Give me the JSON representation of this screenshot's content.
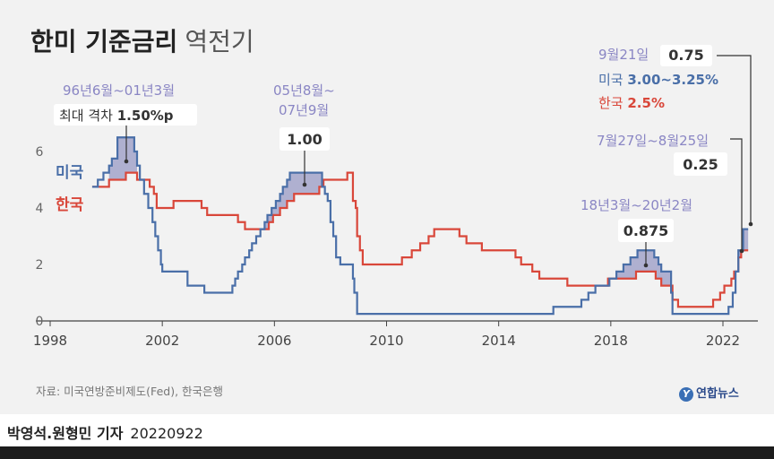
{
  "title": {
    "bold": "한미 기준금리",
    "light": "역전기"
  },
  "source": "자료: 미국연방준비제도(Fed), 한국은행",
  "logo": {
    "mark": "Y",
    "text": "연합뉴스"
  },
  "byline": {
    "name": "박영석.원형민 기자",
    "date": "20220922"
  },
  "colors": {
    "us": "#4a6fa8",
    "kr": "#d9473a",
    "gap_fill": "#a7a8cc",
    "annotation": "#8a86c4",
    "grid": "#cfcfcf",
    "axis": "#444444"
  },
  "annotations": [
    {
      "id": "ann1",
      "line1": "96년6월~01년3월",
      "line2_prefix": "최대 격차 ",
      "line2_value": "1.50%p"
    },
    {
      "id": "ann2",
      "line1": "05년8월~",
      "line2": "07년9월",
      "badge": "1.00"
    },
    {
      "id": "ann3",
      "line1": "18년3월~20년2월",
      "badge": "0.875"
    },
    {
      "id": "ann4",
      "line1": "7월27일~8월25일",
      "badge": "0.25"
    },
    {
      "id": "ann5",
      "line1": "9월21일",
      "badge": "0.75",
      "us_label": "미국 ",
      "us_value": "3.00~3.25%",
      "kr_label": "한국 ",
      "kr_value": "2.5%"
    }
  ],
  "chart_data": {
    "type": "line",
    "title": "한미 기준금리 역전기",
    "xlabel": "",
    "ylabel": "",
    "xlim": [
      1998,
      2023.2
    ],
    "ylim": [
      0,
      7
    ],
    "x_ticks": [
      1998,
      2002,
      2006,
      2010,
      2014,
      2018,
      2022
    ],
    "y_ticks": [
      0,
      2,
      4,
      6
    ],
    "grid": false,
    "legend": "inline-left",
    "series": [
      {
        "name": "미국",
        "key": "us",
        "step": true,
        "points": [
          [
            1999.5,
            4.75
          ],
          [
            1999.7,
            5.0
          ],
          [
            1999.9,
            5.25
          ],
          [
            2000.1,
            5.5
          ],
          [
            2000.2,
            5.75
          ],
          [
            2000.4,
            6.5
          ],
          [
            2001.0,
            6.0
          ],
          [
            2001.1,
            5.5
          ],
          [
            2001.2,
            5.0
          ],
          [
            2001.35,
            4.5
          ],
          [
            2001.5,
            4.0
          ],
          [
            2001.65,
            3.5
          ],
          [
            2001.75,
            3.0
          ],
          [
            2001.85,
            2.5
          ],
          [
            2001.95,
            2.0
          ],
          [
            2002.0,
            1.75
          ],
          [
            2002.9,
            1.25
          ],
          [
            2003.5,
            1.0
          ],
          [
            2004.5,
            1.25
          ],
          [
            2004.6,
            1.5
          ],
          [
            2004.7,
            1.75
          ],
          [
            2004.85,
            2.0
          ],
          [
            2004.95,
            2.25
          ],
          [
            2005.1,
            2.5
          ],
          [
            2005.2,
            2.75
          ],
          [
            2005.35,
            3.0
          ],
          [
            2005.5,
            3.25
          ],
          [
            2005.65,
            3.5
          ],
          [
            2005.75,
            3.75
          ],
          [
            2005.9,
            4.0
          ],
          [
            2006.05,
            4.25
          ],
          [
            2006.2,
            4.5
          ],
          [
            2006.3,
            4.75
          ],
          [
            2006.45,
            5.0
          ],
          [
            2006.55,
            5.25
          ],
          [
            2007.7,
            4.75
          ],
          [
            2007.8,
            4.5
          ],
          [
            2007.9,
            4.25
          ],
          [
            2008.0,
            3.5
          ],
          [
            2008.1,
            3.0
          ],
          [
            2008.2,
            2.25
          ],
          [
            2008.35,
            2.0
          ],
          [
            2008.8,
            1.5
          ],
          [
            2008.85,
            1.0
          ],
          [
            2008.95,
            0.25
          ],
          [
            2015.95,
            0.5
          ],
          [
            2016.95,
            0.75
          ],
          [
            2017.2,
            1.0
          ],
          [
            2017.45,
            1.25
          ],
          [
            2017.95,
            1.5
          ],
          [
            2018.2,
            1.75
          ],
          [
            2018.45,
            2.0
          ],
          [
            2018.7,
            2.25
          ],
          [
            2018.95,
            2.5
          ],
          [
            2019.55,
            2.25
          ],
          [
            2019.7,
            2.0
          ],
          [
            2019.8,
            1.75
          ],
          [
            2020.15,
            1.0
          ],
          [
            2020.2,
            0.25
          ],
          [
            2022.2,
            0.5
          ],
          [
            2022.35,
            1.0
          ],
          [
            2022.45,
            1.75
          ],
          [
            2022.55,
            2.5
          ],
          [
            2022.72,
            3.25
          ],
          [
            2022.9,
            3.25
          ]
        ]
      },
      {
        "name": "한국",
        "key": "kr",
        "step": true,
        "points": [
          [
            1999.5,
            4.75
          ],
          [
            2000.1,
            5.0
          ],
          [
            2000.7,
            5.25
          ],
          [
            2001.1,
            5.0
          ],
          [
            2001.55,
            4.75
          ],
          [
            2001.7,
            4.5
          ],
          [
            2001.8,
            4.0
          ],
          [
            2002.4,
            4.25
          ],
          [
            2003.4,
            4.0
          ],
          [
            2003.6,
            3.75
          ],
          [
            2004.7,
            3.5
          ],
          [
            2004.95,
            3.25
          ],
          [
            2005.8,
            3.5
          ],
          [
            2005.95,
            3.75
          ],
          [
            2006.2,
            4.0
          ],
          [
            2006.45,
            4.25
          ],
          [
            2006.7,
            4.5
          ],
          [
            2007.6,
            4.75
          ],
          [
            2007.75,
            5.0
          ],
          [
            2008.6,
            5.25
          ],
          [
            2008.8,
            4.25
          ],
          [
            2008.9,
            4.0
          ],
          [
            2008.95,
            3.0
          ],
          [
            2009.05,
            2.5
          ],
          [
            2009.15,
            2.0
          ],
          [
            2010.55,
            2.25
          ],
          [
            2010.9,
            2.5
          ],
          [
            2011.2,
            2.75
          ],
          [
            2011.5,
            3.0
          ],
          [
            2011.7,
            3.25
          ],
          [
            2012.6,
            3.0
          ],
          [
            2012.85,
            2.75
          ],
          [
            2013.4,
            2.5
          ],
          [
            2014.6,
            2.25
          ],
          [
            2014.8,
            2.0
          ],
          [
            2015.2,
            1.75
          ],
          [
            2015.45,
            1.5
          ],
          [
            2016.45,
            1.25
          ],
          [
            2017.9,
            1.5
          ],
          [
            2018.9,
            1.75
          ],
          [
            2019.6,
            1.5
          ],
          [
            2019.8,
            1.25
          ],
          [
            2020.2,
            0.75
          ],
          [
            2020.4,
            0.5
          ],
          [
            2021.65,
            0.75
          ],
          [
            2021.9,
            1.0
          ],
          [
            2022.05,
            1.25
          ],
          [
            2022.3,
            1.5
          ],
          [
            2022.4,
            1.75
          ],
          [
            2022.55,
            2.25
          ],
          [
            2022.65,
            2.5
          ],
          [
            2022.9,
            2.5
          ]
        ]
      }
    ],
    "inversion_periods": [
      [
        2000.1,
        2001.1
      ],
      [
        2005.6,
        2007.75
      ],
      [
        2018.2,
        2020.15
      ],
      [
        2022.55,
        2022.65
      ],
      [
        2022.72,
        2022.9
      ]
    ]
  }
}
